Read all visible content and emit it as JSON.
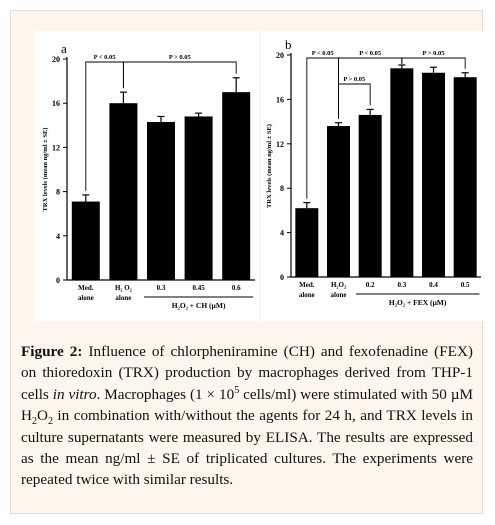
{
  "chart_data": [
    {
      "panel": "a",
      "type": "bar",
      "ylabel": "TRX levels (mean ng/ml ± SE)",
      "ylim": [
        0,
        20
      ],
      "yticks": [
        "0",
        "4",
        "8",
        "12",
        "16",
        "20"
      ],
      "categories": [
        {
          "line1": "Med.",
          "line2": "alone"
        },
        {
          "line1": "H₂ O₂",
          "line2": "alone"
        },
        {
          "line1": "0.3",
          "line2": ""
        },
        {
          "line1": "0.45",
          "line2": ""
        },
        {
          "line1": "0.6",
          "line2": ""
        }
      ],
      "values": [
        7.1,
        16.0,
        14.3,
        14.8,
        17.0
      ],
      "errors": [
        0.6,
        1.0,
        0.5,
        0.3,
        1.3
      ],
      "group_label": "H₂O₂ + CH (µM)",
      "group_bracket": [
        2,
        4
      ],
      "significance": [
        {
          "label": "P < 0.05",
          "from": 0,
          "to": 1,
          "level": 0
        },
        {
          "label": "P > 0.05",
          "from": 1,
          "to": 4,
          "level": 0
        }
      ]
    },
    {
      "panel": "b",
      "type": "bar",
      "ylabel": "TRX levels (mean ng/ml ± SE)",
      "ylim": [
        0,
        20
      ],
      "yticks": [
        "0",
        "4",
        "8",
        "12",
        "16",
        "20"
      ],
      "categories": [
        {
          "line1": "Med.",
          "line2": "alone"
        },
        {
          "line1": "H₂O₂",
          "line2": "alone"
        },
        {
          "line1": "0.2",
          "line2": ""
        },
        {
          "line1": "0.3",
          "line2": ""
        },
        {
          "line1": "0.4",
          "line2": ""
        },
        {
          "line1": "0.5",
          "line2": ""
        }
      ],
      "values": [
        6.2,
        13.6,
        14.6,
        18.8,
        18.4,
        18.0
      ],
      "errors": [
        0.5,
        0.3,
        0.5,
        0.3,
        0.5,
        0.4
      ],
      "group_label": "H₂O₂ + FEX (µM)",
      "group_bracket": [
        2,
        5
      ],
      "significance": [
        {
          "label": "P < 0.05",
          "from": 0,
          "to": 1,
          "level": 0
        },
        {
          "label": "P < 0.05",
          "from": 1,
          "to": 3,
          "level": 0
        },
        {
          "label": "P > 0.05",
          "from": 3,
          "to": 5,
          "level": 0
        },
        {
          "label": "P > 0.05",
          "from": 1,
          "to": 2,
          "level": 1
        }
      ]
    }
  ],
  "panels": {
    "a_label": "a",
    "b_label": "b"
  },
  "caption": {
    "figure_label": "Figure 2:",
    "part1": " Influence of chlorpheniramine (CH) and fexofenadine (FEX) on thioredoxin (TRX) production by macrophages derived from THP-1 cells ",
    "in_vitro": "in vitro",
    "part2": ". Macrophages (1 × 10",
    "sup5": "5",
    "part3": " cells/ml) were stimulated with 50 µM H",
    "sub2a": "2",
    "part4": "O",
    "sub2b": "2",
    "part5": " in combination with/without the agents for 24 h, and TRX levels in culture supernatants were measured by ELISA. The results are expressed as the mean ng/ml ± SE of triplicated cultures. The experiments were repeated twice with similar results."
  }
}
